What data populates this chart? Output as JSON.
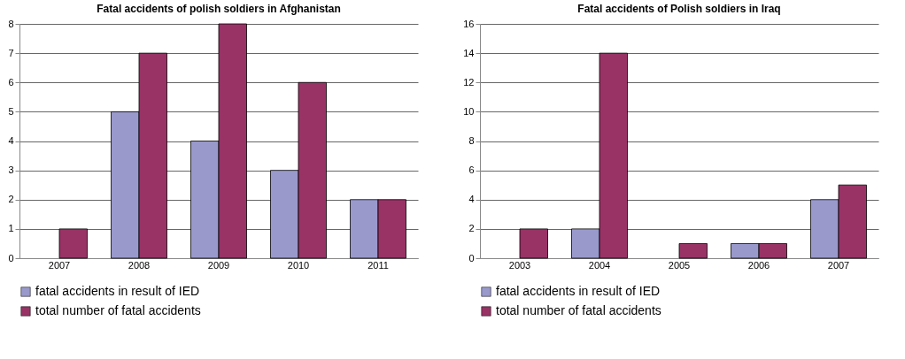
{
  "chart_data": [
    {
      "type": "bar",
      "title": "Fatal accidents of polish soldiers in Afghanistan",
      "categories": [
        "2007",
        "2008",
        "2009",
        "2010",
        "2011"
      ],
      "series": [
        {
          "name": "fatal accidents in result of IED",
          "color": "#9999cc",
          "values": [
            null,
            5,
            4,
            3,
            2
          ]
        },
        {
          "name": "total number of fatal accidents",
          "color": "#993366",
          "values": [
            1,
            7,
            8,
            6,
            2
          ]
        }
      ],
      "ylim": [
        0,
        8
      ],
      "yticks": [
        0,
        1,
        2,
        3,
        4,
        5,
        6,
        7,
        8
      ],
      "grid": "y",
      "legend": "bottom"
    },
    {
      "type": "bar",
      "title": "Fatal accidents of Polish soldiers in Iraq",
      "categories": [
        "2003",
        "2004",
        "2005",
        "2006",
        "2007"
      ],
      "series": [
        {
          "name": "fatal accidents in result of IED",
          "color": "#9999cc",
          "values": [
            null,
            2,
            null,
            1,
            4
          ]
        },
        {
          "name": "total number of fatal accidents",
          "color": "#993366",
          "values": [
            2,
            14,
            1,
            1,
            5
          ]
        }
      ],
      "ylim": [
        0,
        16
      ],
      "yticks": [
        0,
        2,
        4,
        6,
        8,
        10,
        12,
        14,
        16
      ],
      "grid": "y",
      "legend": "bottom"
    }
  ]
}
